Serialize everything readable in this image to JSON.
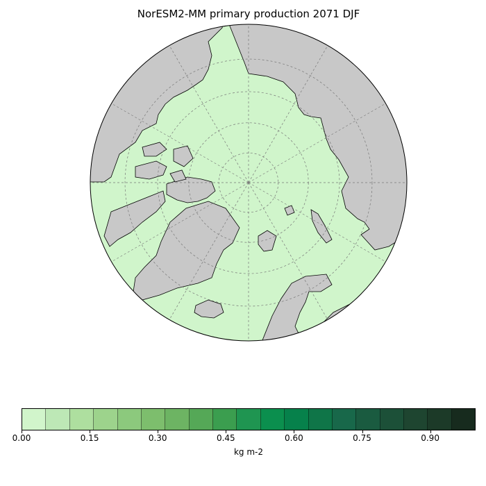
{
  "title": "NorESM2-MM primary production 2071 DJF",
  "colors": {
    "ocean": "#d0f5cb",
    "land": "#c8c8c8",
    "coast": "#000000",
    "grid": "#777777"
  },
  "map": {
    "projection": "north-polar-stereographic",
    "center": [
      358,
      263
    ],
    "radius": 228,
    "latitude_circles": [
      80,
      70,
      60,
      50,
      40
    ],
    "meridian_interval_deg": 30
  },
  "colorbar": {
    "label": "kg m-2",
    "min": 0.0,
    "max": 1.0,
    "tick_values": [
      0.0,
      0.15,
      0.3,
      0.45,
      0.6,
      0.75,
      0.9
    ],
    "tick_labels": [
      "0.00",
      "0.15",
      "0.30",
      "0.45",
      "0.60",
      "0.75",
      "0.90"
    ],
    "colors": [
      "#d1f5cb",
      "#bde8b6",
      "#aedf9f",
      "#9dd38c",
      "#8cc97d",
      "#7dbe6d",
      "#6db463",
      "#55a857",
      "#3b9e4f",
      "#1f9551",
      "#0b8f4e",
      "#06814b",
      "#0f7548",
      "#18684a",
      "#1a5b40",
      "#1c5038",
      "#1e4530",
      "#1c3a28",
      "#172b1e"
    ]
  }
}
